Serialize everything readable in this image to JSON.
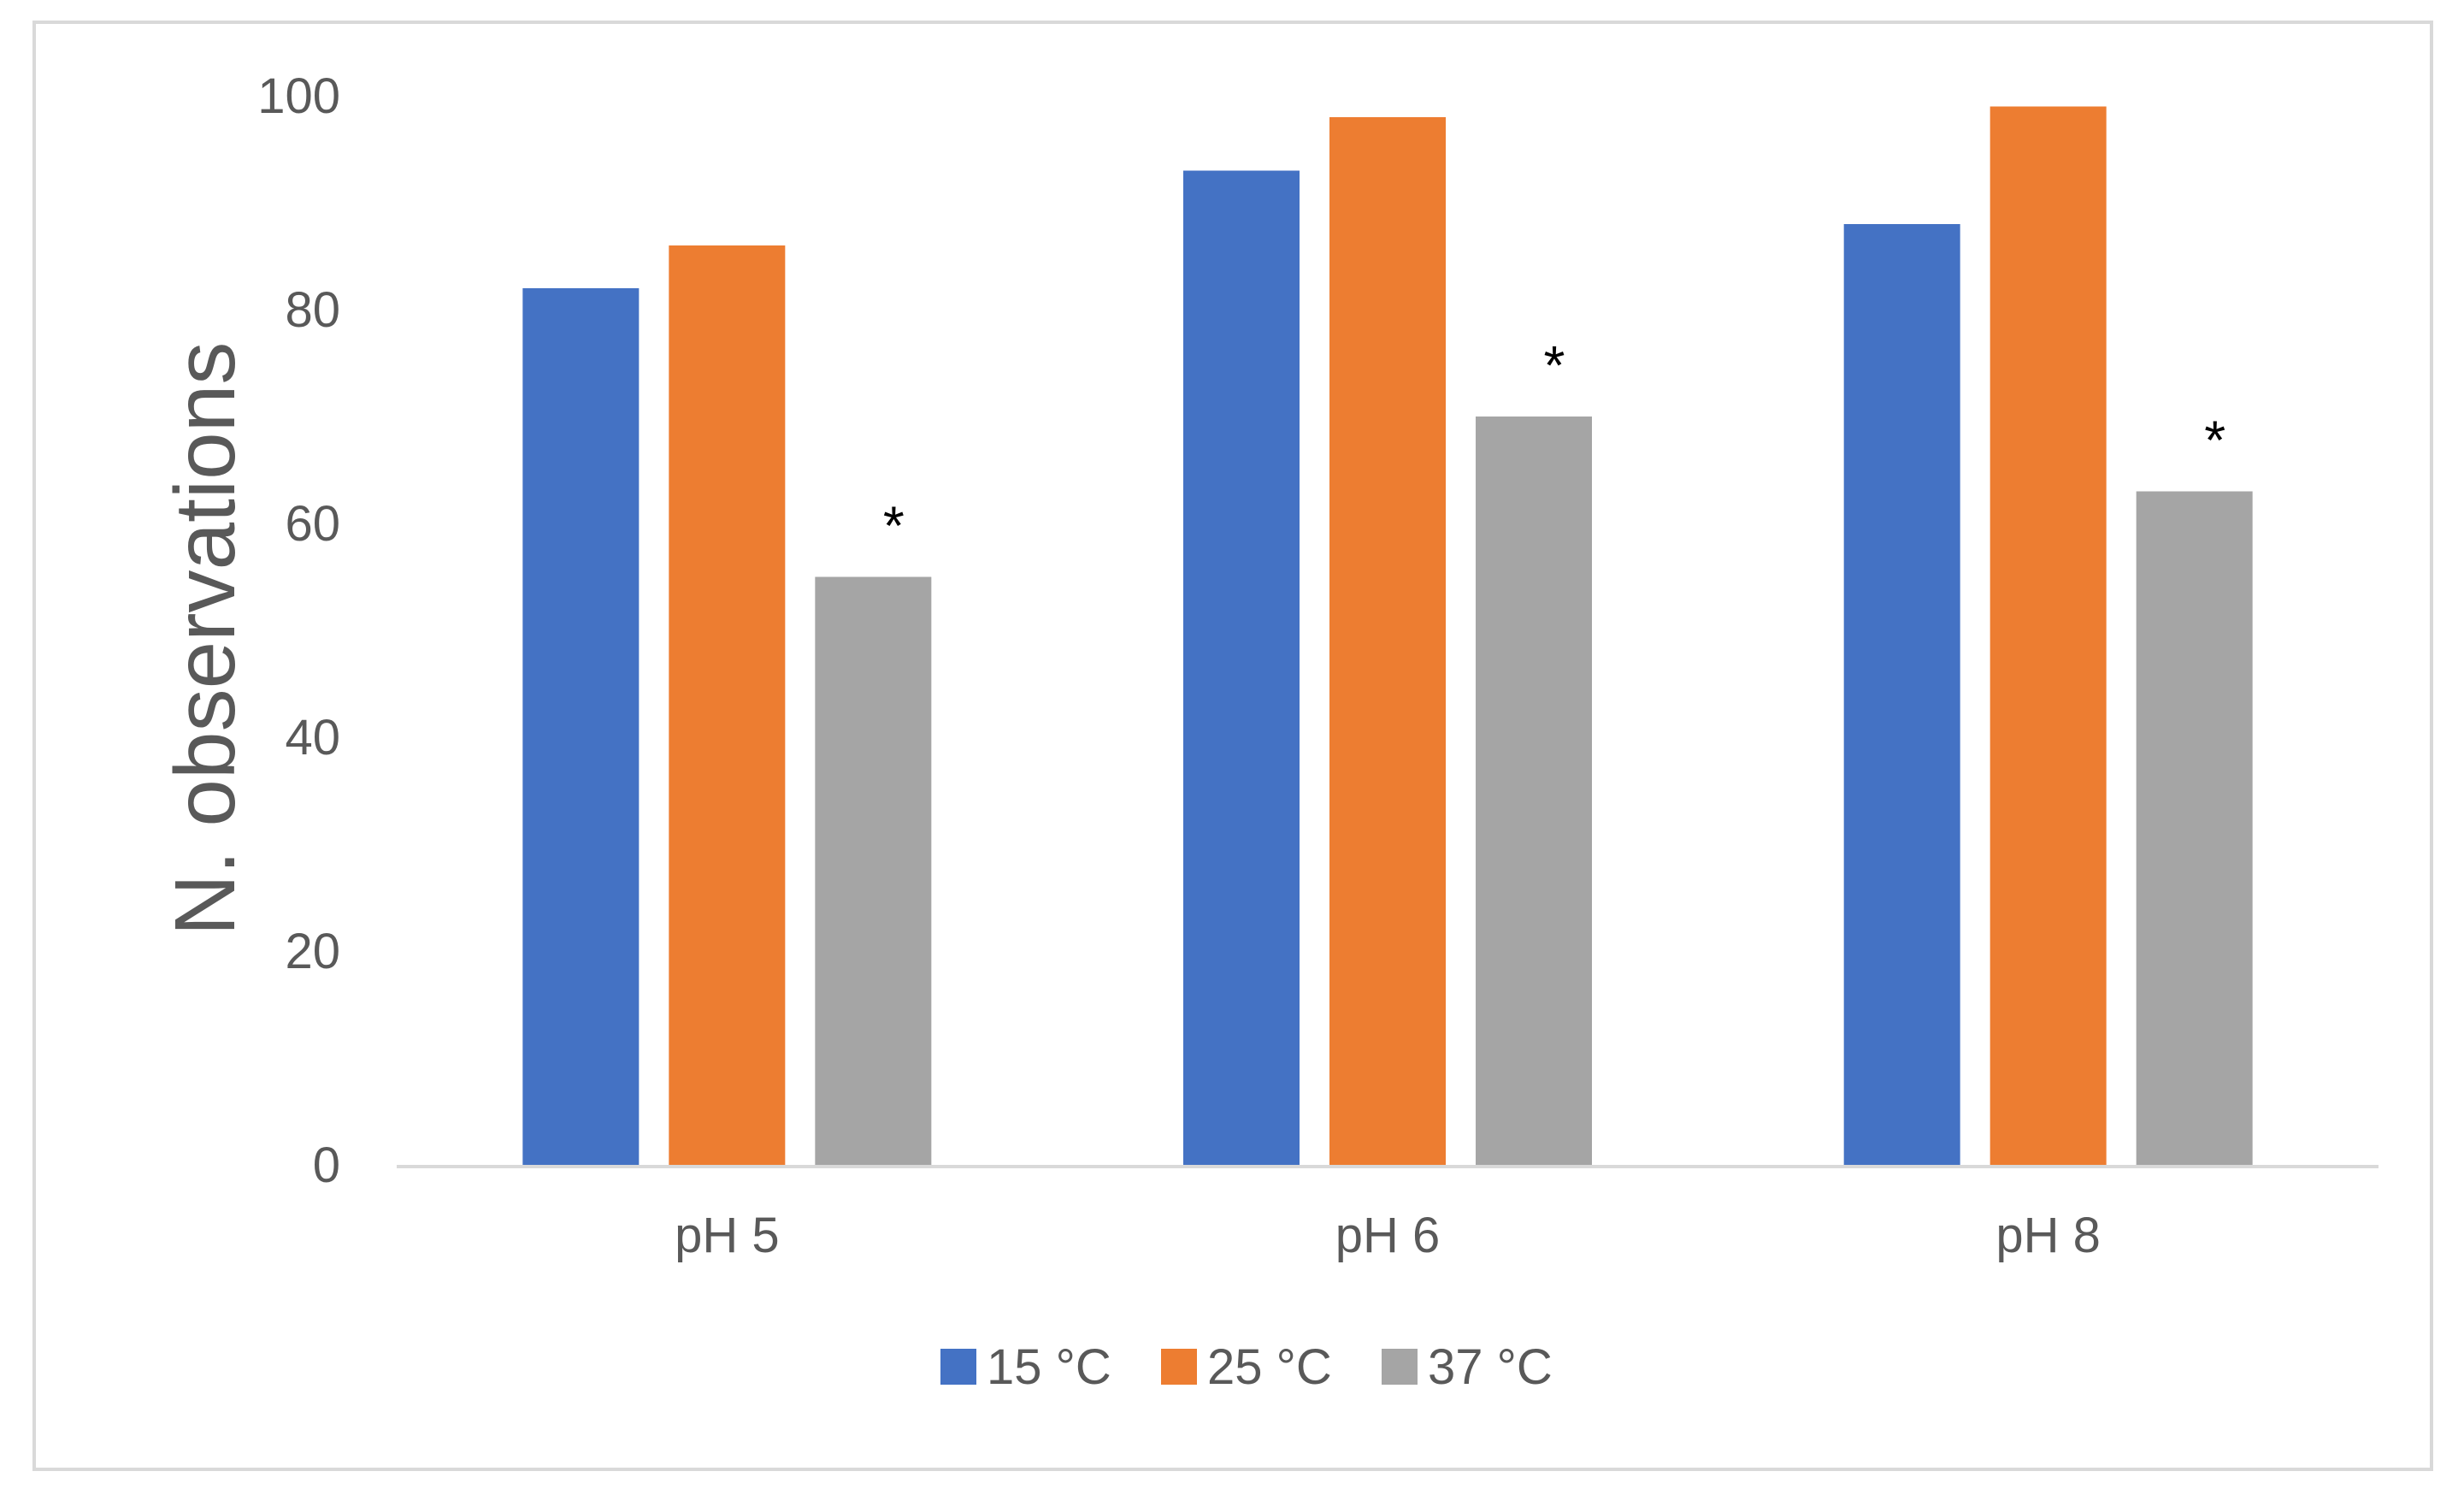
{
  "chart_data": {
    "type": "bar",
    "title": "",
    "xlabel": "",
    "ylabel": "N. observations",
    "ylim": [
      0,
      100
    ],
    "yticks": [
      0,
      20,
      40,
      60,
      80,
      100
    ],
    "categories": [
      "pH 5",
      "pH 6",
      "pH 8"
    ],
    "series": [
      {
        "name": "15 °C",
        "color": "#4472c4",
        "values": [
          82,
          93,
          88
        ]
      },
      {
        "name": "25 °C",
        "color": "#ed7d31",
        "values": [
          86,
          98,
          99
        ]
      },
      {
        "name": "37 °C",
        "color": "#a5a5a5",
        "values": [
          55,
          70,
          63
        ]
      }
    ],
    "annotations": [
      {
        "series": 2,
        "category": 0,
        "text": "*"
      },
      {
        "series": 2,
        "category": 1,
        "text": "*"
      },
      {
        "series": 2,
        "category": 2,
        "text": "*"
      }
    ],
    "grid": false,
    "legend_position": "bottom"
  }
}
